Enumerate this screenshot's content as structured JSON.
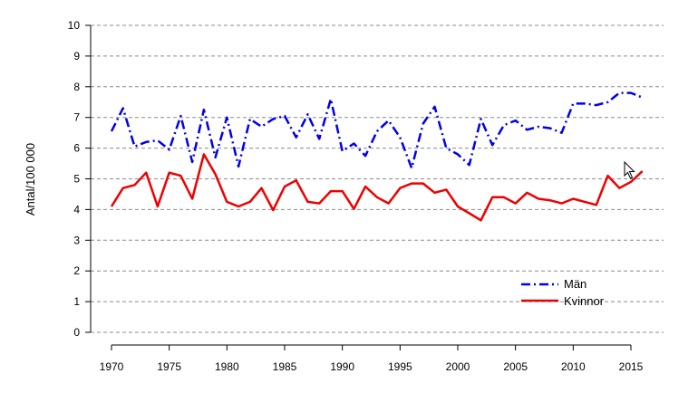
{
  "chart_data": {
    "type": "line",
    "title": "",
    "xlabel": "",
    "ylabel": "Antal/100 000",
    "xlim": [
      1970,
      2016
    ],
    "ylim": [
      0,
      10
    ],
    "x_ticks": [
      1970,
      1975,
      1980,
      1985,
      1990,
      1995,
      2000,
      2005,
      2010,
      2015
    ],
    "y_ticks": [
      0,
      1,
      2,
      3,
      4,
      5,
      6,
      7,
      8,
      9,
      10
    ],
    "grid": "horizontal-dashed",
    "legend_position": "bottom-right",
    "x": [
      1970,
      1971,
      1972,
      1973,
      1974,
      1975,
      1976,
      1977,
      1978,
      1979,
      1980,
      1981,
      1982,
      1983,
      1984,
      1985,
      1986,
      1987,
      1988,
      1989,
      1990,
      1991,
      1992,
      1993,
      1994,
      1995,
      1996,
      1997,
      1998,
      1999,
      2000,
      2001,
      2002,
      2003,
      2004,
      2005,
      2006,
      2007,
      2008,
      2009,
      2010,
      2011,
      2012,
      2013,
      2014,
      2015,
      2016
    ],
    "series": [
      {
        "name": "Män",
        "color": "#0000ee",
        "style": "dashdot",
        "values": [
          6.55,
          7.3,
          6.05,
          6.2,
          6.25,
          5.95,
          7.05,
          5.55,
          7.25,
          5.7,
          7.0,
          5.4,
          6.95,
          6.7,
          6.95,
          7.05,
          6.35,
          7.1,
          6.3,
          7.6,
          5.9,
          6.15,
          5.75,
          6.55,
          6.9,
          6.35,
          5.35,
          6.8,
          7.35,
          6.0,
          5.8,
          5.45,
          6.95,
          6.1,
          6.75,
          6.9,
          6.6,
          6.7,
          6.65,
          6.5,
          7.45,
          7.45,
          7.4,
          7.5,
          7.8,
          7.8,
          7.65
        ]
      },
      {
        "name": "Kvinnor",
        "color": "#ee0000",
        "style": "solid",
        "values": [
          4.1,
          4.7,
          4.8,
          5.2,
          4.1,
          5.2,
          5.1,
          4.35,
          5.8,
          5.15,
          4.25,
          4.1,
          4.25,
          4.7,
          3.98,
          4.75,
          4.95,
          4.25,
          4.2,
          4.6,
          4.6,
          4.02,
          4.75,
          4.4,
          4.2,
          4.7,
          4.85,
          4.85,
          4.55,
          4.65,
          4.1,
          3.88,
          3.65,
          4.4,
          4.4,
          4.2,
          4.55,
          4.35,
          4.3,
          4.2,
          4.35,
          4.25,
          4.15,
          5.1,
          4.7,
          4.9,
          5.25
        ]
      }
    ]
  }
}
